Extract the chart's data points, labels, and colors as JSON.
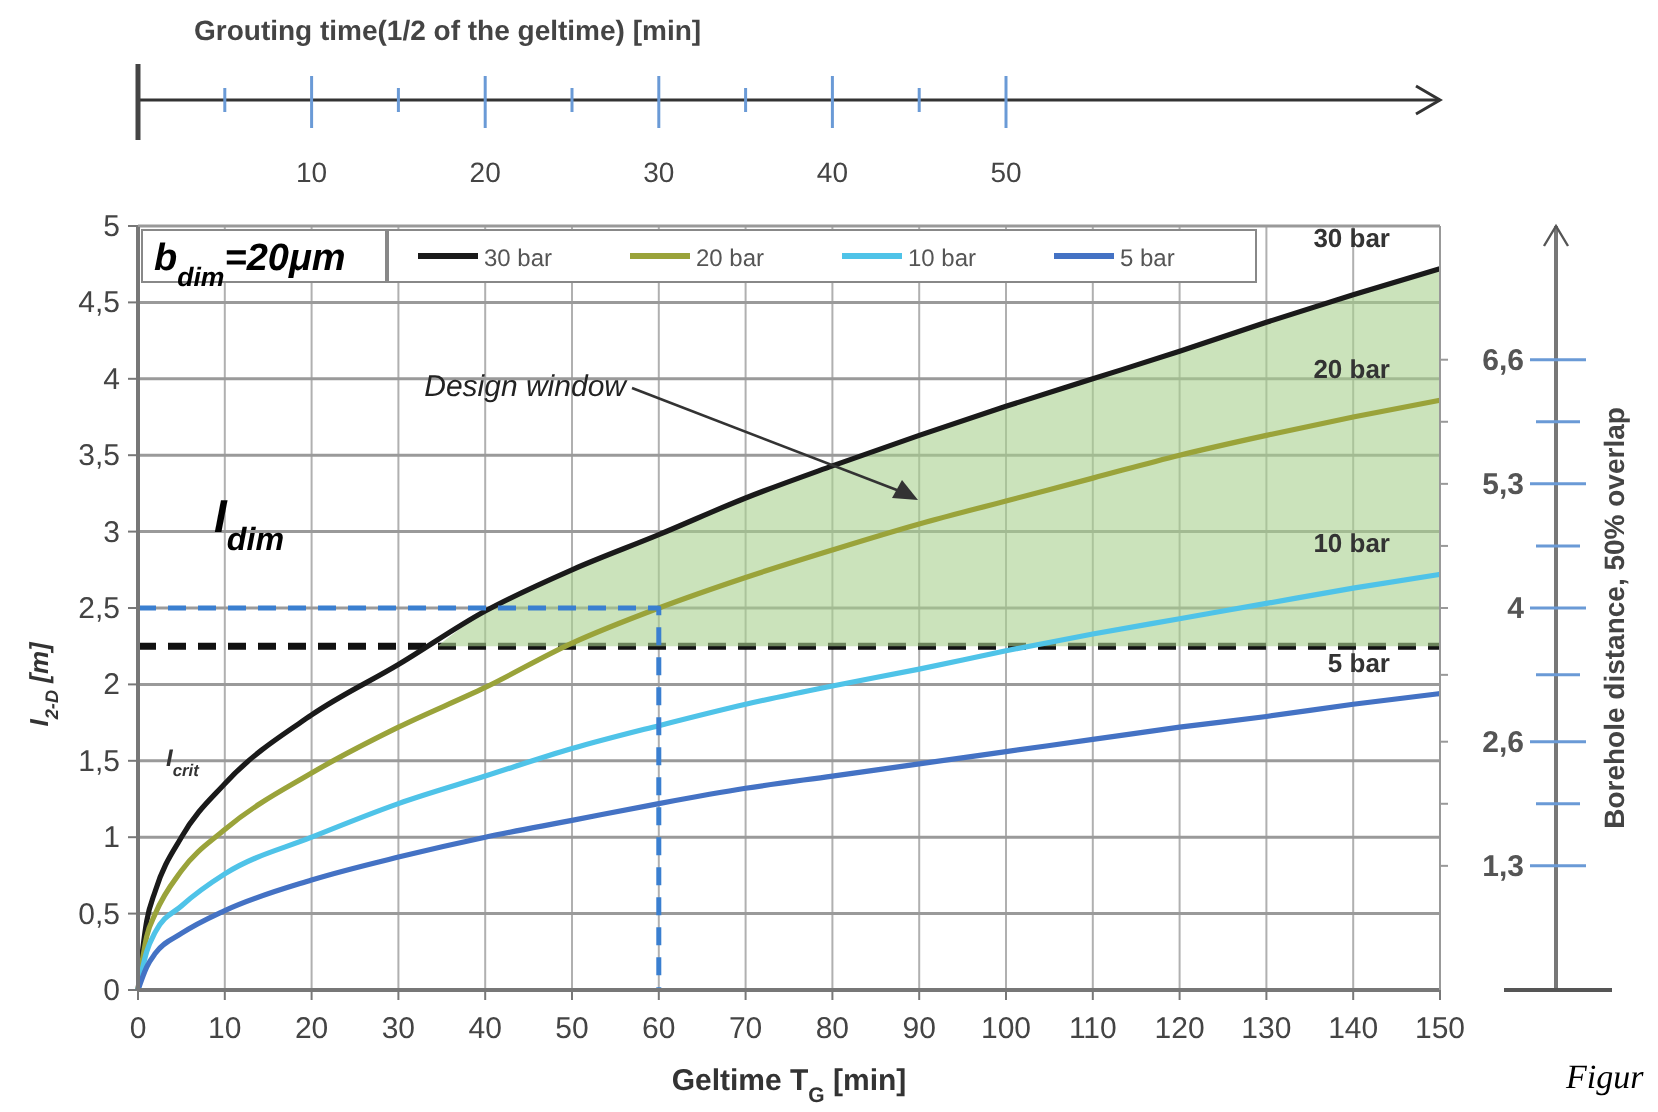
{
  "chart_data": {
    "type": "line",
    "xlabel": "Geltime T$_{G}$ [min]",
    "ylabel": "I$_{2-D}$ [m]",
    "x2label": "Grouting time(1/2 of the geltime) [min]",
    "y2label": "Borehole distance, 50% overlap",
    "x": [
      0,
      1,
      2,
      5,
      10,
      20,
      30,
      40,
      50,
      60,
      70,
      80,
      90,
      100,
      110,
      120,
      130,
      140,
      150
    ],
    "series": [
      {
        "name": "30 bar",
        "color": "#1a1a1a",
        "values": [
          0,
          0.45,
          0.65,
          1.0,
          1.35,
          1.8,
          2.13,
          2.48,
          2.75,
          2.98,
          3.22,
          3.43,
          3.63,
          3.82,
          4.0,
          4.18,
          4.37,
          4.55,
          4.72
        ]
      },
      {
        "name": "20 bar",
        "color": "#9aa33a",
        "values": [
          0,
          0.35,
          0.5,
          0.78,
          1.05,
          1.42,
          1.72,
          1.98,
          2.27,
          2.5,
          2.7,
          2.88,
          3.05,
          3.2,
          3.35,
          3.5,
          3.63,
          3.75,
          3.86
        ]
      },
      {
        "name": "10 bar",
        "color": "#4fc3e8",
        "values": [
          0,
          0.25,
          0.38,
          0.55,
          0.76,
          1.0,
          1.22,
          1.4,
          1.58,
          1.73,
          1.87,
          1.99,
          2.1,
          2.22,
          2.33,
          2.43,
          2.53,
          2.63,
          2.72
        ]
      },
      {
        "name": "5 bar",
        "color": "#4472c4",
        "values": [
          0,
          0.15,
          0.24,
          0.37,
          0.52,
          0.72,
          0.87,
          1.0,
          1.11,
          1.22,
          1.32,
          1.4,
          1.48,
          1.56,
          1.64,
          1.72,
          1.79,
          1.87,
          1.94
        ]
      },
      {
        "type": "area",
        "color": "#a9d18e",
        "x": [
          34.5,
          40,
          50,
          60,
          70,
          80,
          90,
          100,
          110,
          120,
          130,
          140,
          150
        ],
        "values": [
          2.25,
          2.48,
          2.75,
          2.98,
          3.22,
          3.43,
          3.63,
          3.82,
          4.0,
          4.18,
          4.37,
          4.55,
          4.72
        ]
      },
      {
        "color": "#3a7fd0",
        "line_style": "dashed",
        "x": [
          0,
          60,
          60
        ],
        "values": [
          2.5,
          2.5,
          0
        ]
      }
    ],
    "ref_lines": [
      {
        "axis": "y",
        "value": 2.25,
        "color": "#111111",
        "line_style": "dashed"
      }
    ],
    "annotations": [
      "b$_{dim}$=20μm",
      "I$_{dim}$",
      "I$_{crit}$",
      "Figur",
      "Design window"
    ],
    "xlim": [
      0,
      150
    ],
    "xticks": [
      0,
      10,
      20,
      30,
      40,
      50,
      60,
      70,
      80,
      90,
      100,
      110,
      120,
      130,
      140,
      150
    ],
    "ylim": [
      0,
      5
    ],
    "yticks": [
      0,
      {
        "value": 0.5,
        "label": "0,5"
      },
      1,
      {
        "value": 1.5,
        "label": "1,5"
      },
      2,
      {
        "value": 2.5,
        "label": "2,5"
      },
      3,
      {
        "value": 3.5,
        "label": "3,5"
      },
      4,
      {
        "value": 4.5,
        "label": "4,5"
      },
      5
    ],
    "x2lim": [
      0,
      75
    ],
    "x2ticks": [
      {
        "value": 0,
        "label": null
      },
      {
        "value": 5,
        "label": null
      },
      10,
      {
        "value": 15,
        "label": null
      },
      20,
      {
        "value": 25,
        "label": null
      },
      30,
      {
        "value": 35,
        "label": null
      },
      40,
      {
        "value": 45,
        "label": null
      },
      50
    ],
    "y2lim": [
      0,
      8
    ],
    "y2ticks": [
      {
        "value": 1.3,
        "label": "1,3"
      },
      {
        "value": 1.95,
        "label": null
      },
      {
        "value": 2.6,
        "label": "2,6"
      },
      {
        "value": 3.3,
        "label": null
      },
      {
        "value": 4,
        "label": "4"
      },
      {
        "value": 4.65,
        "label": null
      },
      {
        "value": 5.3,
        "label": "5,3"
      },
      {
        "value": 5.95,
        "label": null
      },
      {
        "value": 6.6,
        "label": "6,6"
      }
    ],
    "grid": true,
    "legend": "top",
    "line_style": "solid",
    "marker": "none"
  }
}
